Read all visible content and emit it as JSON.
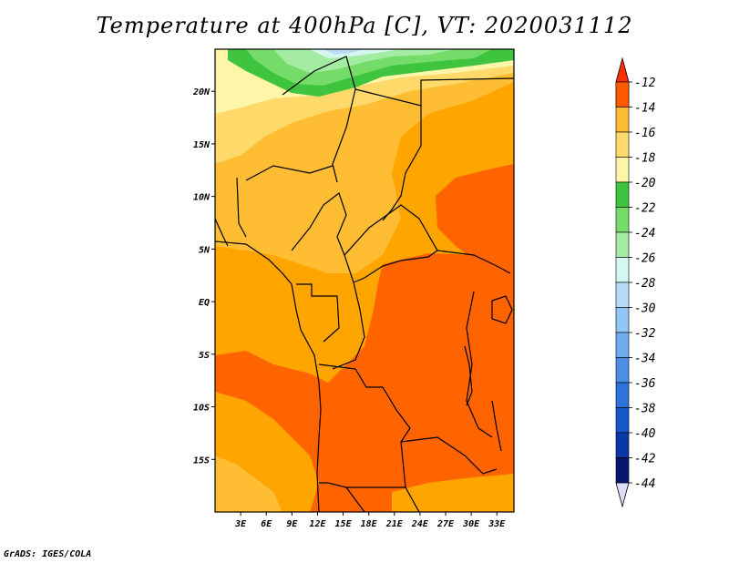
{
  "title": "Temperature at 400hPa [C], VT: 2020031112",
  "credit": "GrADS: IGES/COLA",
  "map": {
    "lon_range": [
      0,
      35
    ],
    "lat_range": [
      -20,
      24
    ],
    "lat_ticks": [
      {
        "value": 20,
        "label": "20N"
      },
      {
        "value": 15,
        "label": "15N"
      },
      {
        "value": 10,
        "label": "10N"
      },
      {
        "value": 5,
        "label": "5N"
      },
      {
        "value": 0,
        "label": "EQ"
      },
      {
        "value": -5,
        "label": "5S"
      },
      {
        "value": -10,
        "label": "10S"
      },
      {
        "value": -15,
        "label": "15S"
      }
    ],
    "lon_ticks": [
      {
        "value": 3,
        "label": "3E"
      },
      {
        "value": 6,
        "label": "6E"
      },
      {
        "value": 9,
        "label": "9E"
      },
      {
        "value": 12,
        "label": "12E"
      },
      {
        "value": 15,
        "label": "15E"
      },
      {
        "value": 18,
        "label": "18E"
      },
      {
        "value": 21,
        "label": "21E"
      },
      {
        "value": 24,
        "label": "24E"
      },
      {
        "value": 27,
        "label": "27E"
      },
      {
        "value": 30,
        "label": "30E"
      },
      {
        "value": 33,
        "label": "33E"
      }
    ]
  },
  "colorbar": {
    "levels": [
      "-12",
      "-14",
      "-16",
      "-18",
      "-20",
      "-22",
      "-24",
      "-26",
      "-28",
      "-30",
      "-32",
      "-34",
      "-36",
      "-38",
      "-40",
      "-42",
      "-44"
    ],
    "colors": [
      "#ff5a00",
      "#ff9f00",
      "#ffbd33",
      "#ffda6a",
      "#fff5a8",
      "#3ec43e",
      "#75dc6a",
      "#a4eca4",
      "#d4f8f0",
      "#b8dcf8",
      "#92c6f6",
      "#6eaef0",
      "#4a8ee6",
      "#2e72dc",
      "#1656c8",
      "#0a38a8",
      "#08166e"
    ],
    "top_arrow_color": "#ff3000",
    "bottom_arrow_color": "#dcdcf8"
  },
  "legend_colors": {
    "t_warm": "#ff6400",
    "t_mid": "#ffa500",
    "t_light": "#ffbd33",
    "t_pale": "#ffda6a",
    "t_cream": "#fff5a8",
    "green_dark": "#3ec43e",
    "green_mid": "#75dc6a",
    "green_light": "#a4eca4",
    "cyan_pale": "#d4f8f0",
    "blue_pale": "#b8dcf8"
  }
}
